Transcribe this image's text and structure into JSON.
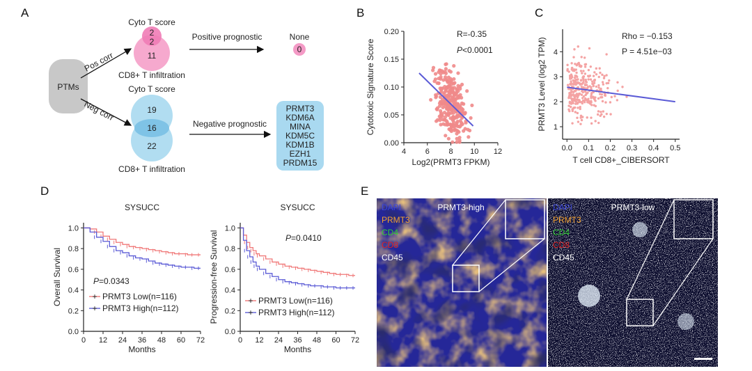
{
  "panel_a": {
    "letter": "A",
    "ptms_label": "PTMs",
    "pos_corr": "Pos corr",
    "neg_corr": "Neg corr",
    "top": {
      "cyto_label": "Cyto T score",
      "cyto_only": "2",
      "overlap": "2",
      "cd8_only": "11",
      "cd8_label": "CD8+ T infiltration",
      "arrow_label": "Positive prognostic",
      "result_label": "None",
      "result_value": "0"
    },
    "bottom": {
      "cyto_label": "Cyto T score",
      "cyto_only": "19",
      "overlap": "16",
      "cd8_only": "22",
      "cd8_label": "CD8+ T infiltration",
      "arrow_label": "Negative prognostic",
      "genes": [
        "PRMT3",
        "KDM6A",
        "MINA",
        "KDM5C",
        "KDM1B",
        "EZH1",
        "PRDM15"
      ]
    }
  },
  "chart_data": [
    {
      "panel": "B",
      "type": "scatter",
      "xlabel": "Log2(PRMT3 FPKM)",
      "ylabel": "Cytotoxic Signature Score",
      "xlim": [
        4,
        12
      ],
      "ylim": [
        0,
        0.2
      ],
      "xticks": [
        "4",
        "6",
        "8",
        "10",
        "12"
      ],
      "yticks": [
        "0.00",
        "0.05",
        "0.10",
        "0.15",
        "0.20"
      ],
      "annotation_r": "R=-0.35",
      "annotation_p_italic": "P",
      "annotation_p_rest": "<0.0001",
      "fit_line": [
        [
          5.3,
          0.125
        ],
        [
          9.9,
          0.03
        ]
      ],
      "point_color": "#f08a8a",
      "line_color": "#5b5bd6"
    },
    {
      "panel": "C",
      "type": "scatter",
      "xlabel": "T cell CD8+_CIBERSORT",
      "ylabel": "PRMT3 Level (log2 TPM)",
      "xlim": [
        -0.02,
        0.52
      ],
      "ylim": [
        0.5,
        4.9
      ],
      "xticks": [
        "0.0",
        "0.1",
        "0.2",
        "0.3",
        "0.4",
        "0.5"
      ],
      "yticks": [
        "1",
        "2",
        "3",
        "4"
      ],
      "annotation_rho": "Rho = −0.153",
      "annotation_p": "P = 4.51e−03",
      "fit_line": [
        [
          0.0,
          2.58
        ],
        [
          0.5,
          2.0
        ]
      ],
      "point_color": "#f4a3a3",
      "line_color": "#5b5bd6"
    },
    {
      "panel": "D",
      "type": "line",
      "title": "SYSUCC",
      "xlabel": "Months",
      "ylabel": "Overall Survival",
      "xlim": [
        0,
        72
      ],
      "ylim": [
        0,
        1.05
      ],
      "xticks": [
        "0",
        "12",
        "24",
        "36",
        "48",
        "60",
        "72"
      ],
      "yticks": [
        "0.0",
        "0.2",
        "0.4",
        "0.6",
        "0.8",
        "1.0"
      ],
      "p_italic": "P",
      "p_rest": "=0.0343",
      "series": [
        {
          "name": "PRMT3 Low(n=116)",
          "color": "#f07878",
          "x": [
            0,
            4,
            8,
            12,
            16,
            20,
            24,
            28,
            32,
            36,
            40,
            44,
            48,
            52,
            56,
            60,
            64,
            68,
            72
          ],
          "y": [
            1.0,
            0.99,
            0.96,
            0.92,
            0.89,
            0.86,
            0.84,
            0.82,
            0.81,
            0.8,
            0.79,
            0.78,
            0.77,
            0.76,
            0.75,
            0.75,
            0.74,
            0.74,
            0.74
          ]
        },
        {
          "name": "PRMT3 High(n=112)",
          "color": "#5b5bd6",
          "x": [
            0,
            4,
            8,
            12,
            16,
            20,
            24,
            28,
            32,
            36,
            40,
            44,
            48,
            52,
            56,
            60,
            64,
            68,
            72
          ],
          "y": [
            1.0,
            0.96,
            0.91,
            0.87,
            0.82,
            0.78,
            0.76,
            0.73,
            0.71,
            0.7,
            0.68,
            0.66,
            0.65,
            0.64,
            0.63,
            0.62,
            0.62,
            0.61,
            0.61
          ]
        }
      ]
    },
    {
      "panel": "D2",
      "type": "line",
      "title": "SYSUCC",
      "xlabel": "Months",
      "ylabel": "Progression-free Survival",
      "xlim": [
        0,
        72
      ],
      "ylim": [
        0,
        1.05
      ],
      "xticks": [
        "0",
        "12",
        "24",
        "36",
        "48",
        "60",
        "72"
      ],
      "yticks": [
        "0.0",
        "0.2",
        "0.4",
        "0.6",
        "0.8",
        "1.0"
      ],
      "p_italic": "P",
      "p_rest": "=0.0410",
      "series": [
        {
          "name": "PRMT3 Low(n=116)",
          "color": "#f07878",
          "x": [
            0,
            2,
            4,
            6,
            8,
            10,
            12,
            16,
            20,
            24,
            28,
            32,
            36,
            40,
            44,
            48,
            52,
            56,
            60,
            64,
            68,
            72
          ],
          "y": [
            1.0,
            0.93,
            0.86,
            0.81,
            0.78,
            0.75,
            0.73,
            0.7,
            0.67,
            0.65,
            0.63,
            0.62,
            0.61,
            0.6,
            0.59,
            0.58,
            0.57,
            0.56,
            0.55,
            0.55,
            0.54,
            0.54
          ]
        },
        {
          "name": "PRMT3 High(n=112)",
          "color": "#5b5bd6",
          "x": [
            0,
            2,
            4,
            6,
            8,
            10,
            12,
            16,
            20,
            24,
            28,
            32,
            36,
            40,
            44,
            48,
            52,
            56,
            60,
            64,
            68,
            72
          ],
          "y": [
            1.0,
            0.88,
            0.78,
            0.72,
            0.67,
            0.63,
            0.6,
            0.56,
            0.53,
            0.5,
            0.48,
            0.47,
            0.46,
            0.45,
            0.44,
            0.44,
            0.43,
            0.43,
            0.42,
            0.42,
            0.42,
            0.42
          ]
        }
      ]
    }
  ],
  "panel_b": {
    "letter": "B"
  },
  "panel_c": {
    "letter": "C"
  },
  "panel_d": {
    "letter": "D"
  },
  "panel_e": {
    "letter": "E",
    "left_title": "PRMT3-high",
    "right_title": "PRMT3-low",
    "stains": [
      {
        "label": "DAPI",
        "color": "#3b46d8"
      },
      {
        "label": "PRMT3",
        "color": "#f0a030"
      },
      {
        "label": "CD4",
        "color": "#33cc33"
      },
      {
        "label": "CD8",
        "color": "#dd2222"
      },
      {
        "label": "CD45",
        "color": "#ffffff"
      }
    ]
  }
}
